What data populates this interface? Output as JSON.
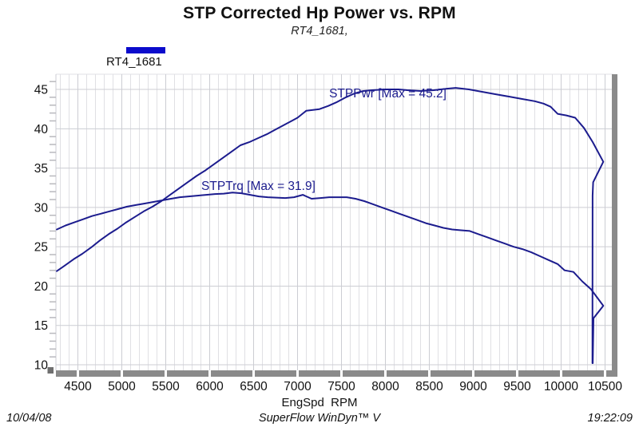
{
  "header": {
    "title": "STP Corrected Hp Power vs. RPM",
    "subtitle": "RT4_1681,"
  },
  "legend": {
    "label": "RT4_1681",
    "swatch_color": "#0b0bcc"
  },
  "footer": {
    "date": "10/04/08",
    "app": "SuperFlow WinDyn™ V",
    "time": "19:22:09"
  },
  "colors": {
    "curve": "#1c1c8e",
    "curve_label": "#1c1c8e",
    "grid_major": "#cccdd3",
    "grid_minor": "#e0e0e4",
    "axis_bar": "#8a8a8a",
    "corner_square": "#6f6f6f",
    "tick_text": "#111111"
  },
  "chart_data": {
    "type": "line",
    "title": "STP Corrected Hp Power vs. RPM",
    "subtitle": "RT4_1681,",
    "xlabel": "EngSpd  RPM",
    "ylabel": "",
    "xlim": [
      4250,
      10595
    ],
    "ylim": [
      9.3,
      46.9
    ],
    "x_ticks": [
      4500,
      5000,
      5500,
      6000,
      6500,
      7000,
      7500,
      8000,
      8500,
      9000,
      9500,
      10000,
      10500
    ],
    "y_ticks": [
      10,
      15,
      20,
      25,
      30,
      35,
      40,
      45
    ],
    "x_minor_step": 100,
    "y_minor_step": 1,
    "grid": true,
    "legend_position": "top-left",
    "series": [
      {
        "name": "STPPwr",
        "label": "STPPwr [Max = 45.2]",
        "max": 45.2,
        "color": "#1c1c8e",
        "label_pos": [
          7360,
          44.0
        ],
        "points": [
          [
            4260,
            21.9
          ],
          [
            4350,
            22.6
          ],
          [
            4450,
            23.4
          ],
          [
            4550,
            24.1
          ],
          [
            4650,
            24.9
          ],
          [
            4750,
            25.8
          ],
          [
            4850,
            26.6
          ],
          [
            4950,
            27.3
          ],
          [
            5050,
            28.1
          ],
          [
            5150,
            28.8
          ],
          [
            5250,
            29.5
          ],
          [
            5350,
            30.1
          ],
          [
            5450,
            30.8
          ],
          [
            5550,
            31.6
          ],
          [
            5650,
            32.4
          ],
          [
            5750,
            33.2
          ],
          [
            5850,
            34.0
          ],
          [
            5950,
            34.7
          ],
          [
            6050,
            35.5
          ],
          [
            6150,
            36.3
          ],
          [
            6250,
            37.1
          ],
          [
            6350,
            37.9
          ],
          [
            6450,
            38.3
          ],
          [
            6550,
            38.8
          ],
          [
            6650,
            39.3
          ],
          [
            6750,
            39.9
          ],
          [
            6850,
            40.5
          ],
          [
            6950,
            41.1
          ],
          [
            7000,
            41.4
          ],
          [
            7100,
            42.3
          ],
          [
            7250,
            42.5
          ],
          [
            7350,
            42.9
          ],
          [
            7450,
            43.4
          ],
          [
            7550,
            44.0
          ],
          [
            7650,
            44.5
          ],
          [
            7750,
            44.8
          ],
          [
            7850,
            44.9
          ],
          [
            8000,
            45.0
          ],
          [
            8150,
            45.0
          ],
          [
            8250,
            44.9
          ],
          [
            8400,
            44.8
          ],
          [
            8550,
            44.9
          ],
          [
            8700,
            45.1
          ],
          [
            8800,
            45.2
          ],
          [
            8950,
            45.0
          ],
          [
            9100,
            44.7
          ],
          [
            9250,
            44.4
          ],
          [
            9400,
            44.1
          ],
          [
            9550,
            43.8
          ],
          [
            9700,
            43.5
          ],
          [
            9800,
            43.2
          ],
          [
            9880,
            42.8
          ],
          [
            9960,
            41.9
          ],
          [
            10060,
            41.7
          ],
          [
            10160,
            41.4
          ],
          [
            10260,
            40.1
          ],
          [
            10360,
            38.3
          ],
          [
            10480,
            35.8
          ],
          [
            10365,
            33.2
          ],
          [
            10358,
            31.5
          ],
          [
            10356,
            10.2
          ]
        ]
      },
      {
        "name": "STPTrq",
        "label": "STPTrq [Max = 31.9]",
        "max": 31.9,
        "color": "#1c1c8e",
        "label_pos": [
          5905,
          32.2
        ],
        "points": [
          [
            4260,
            27.2
          ],
          [
            4360,
            27.7
          ],
          [
            4460,
            28.1
          ],
          [
            4560,
            28.5
          ],
          [
            4660,
            28.9
          ],
          [
            4760,
            29.2
          ],
          [
            4860,
            29.5
          ],
          [
            4960,
            29.8
          ],
          [
            5060,
            30.1
          ],
          [
            5160,
            30.3
          ],
          [
            5260,
            30.5
          ],
          [
            5360,
            30.7
          ],
          [
            5460,
            30.9
          ],
          [
            5560,
            31.1
          ],
          [
            5660,
            31.3
          ],
          [
            5760,
            31.4
          ],
          [
            5860,
            31.5
          ],
          [
            5960,
            31.6
          ],
          [
            6060,
            31.7
          ],
          [
            6160,
            31.75
          ],
          [
            6260,
            31.9
          ],
          [
            6360,
            31.8
          ],
          [
            6460,
            31.6
          ],
          [
            6560,
            31.4
          ],
          [
            6660,
            31.3
          ],
          [
            6760,
            31.25
          ],
          [
            6860,
            31.2
          ],
          [
            6960,
            31.3
          ],
          [
            7060,
            31.6
          ],
          [
            7160,
            31.1
          ],
          [
            7260,
            31.2
          ],
          [
            7360,
            31.3
          ],
          [
            7460,
            31.3
          ],
          [
            7560,
            31.3
          ],
          [
            7660,
            31.1
          ],
          [
            7760,
            30.8
          ],
          [
            7860,
            30.4
          ],
          [
            7960,
            30.0
          ],
          [
            8060,
            29.6
          ],
          [
            8160,
            29.2
          ],
          [
            8260,
            28.8
          ],
          [
            8360,
            28.4
          ],
          [
            8460,
            28.0
          ],
          [
            8560,
            27.7
          ],
          [
            8660,
            27.4
          ],
          [
            8760,
            27.2
          ],
          [
            8860,
            27.1
          ],
          [
            8960,
            27.0
          ],
          [
            9060,
            26.6
          ],
          [
            9160,
            26.2
          ],
          [
            9260,
            25.8
          ],
          [
            9360,
            25.4
          ],
          [
            9460,
            25.0
          ],
          [
            9560,
            24.7
          ],
          [
            9660,
            24.3
          ],
          [
            9760,
            23.8
          ],
          [
            9860,
            23.3
          ],
          [
            9960,
            22.8
          ],
          [
            10040,
            22.0
          ],
          [
            10140,
            21.8
          ],
          [
            10240,
            20.6
          ],
          [
            10340,
            19.6
          ],
          [
            10480,
            17.5
          ],
          [
            10368,
            15.9
          ],
          [
            10360,
            10.2
          ]
        ]
      }
    ]
  }
}
